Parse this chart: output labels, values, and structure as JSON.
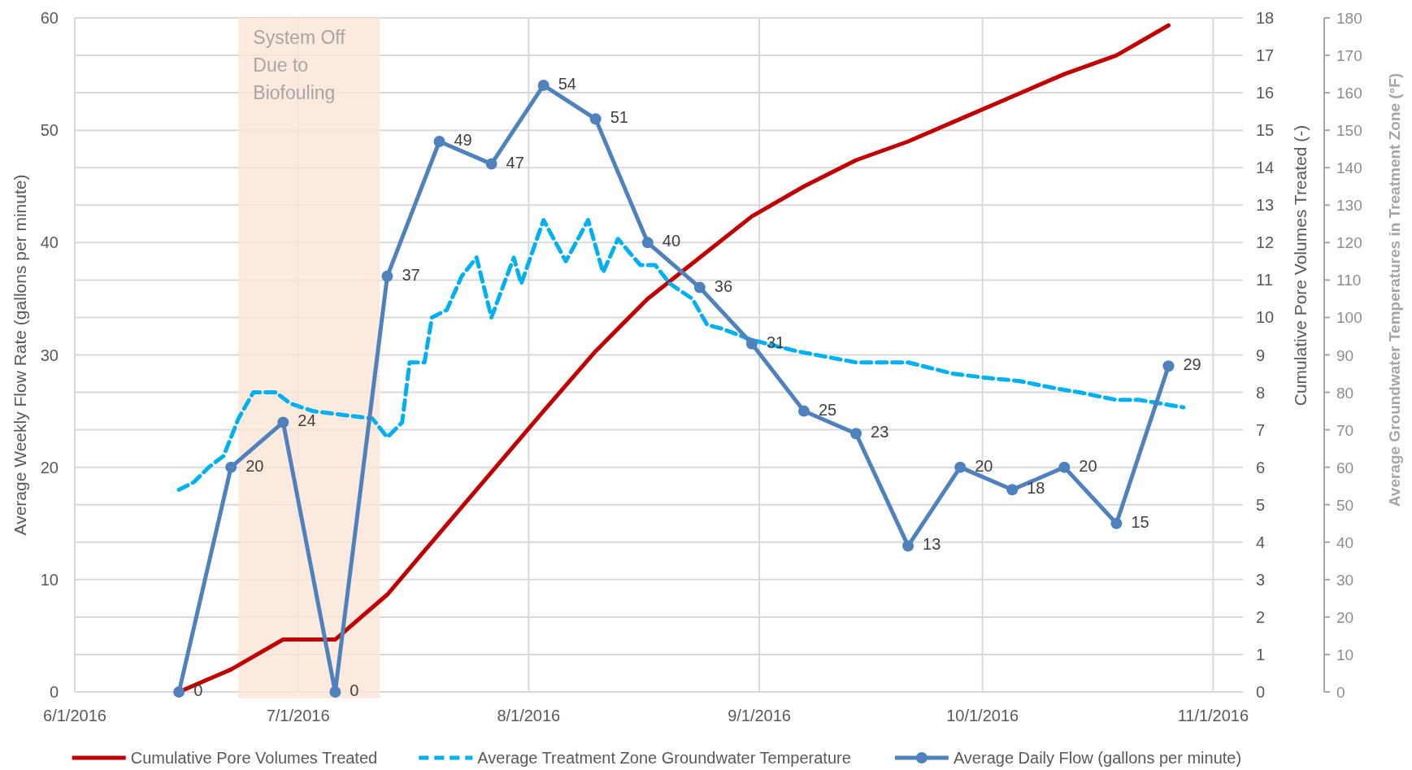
{
  "chart_data": {
    "type": "line",
    "xlim": [
      "2016-06-01",
      "2016-11-05"
    ],
    "xticks": [
      {
        "value": "2016-06-01",
        "label": "6/1/2016"
      },
      {
        "value": "2016-07-01",
        "label": "7/1/2016"
      },
      {
        "value": "2016-08-01",
        "label": "8/1/2016"
      },
      {
        "value": "2016-09-01",
        "label": "9/1/2016"
      },
      {
        "value": "2016-10-01",
        "label": "10/1/2016"
      },
      {
        "value": "2016-11-01",
        "label": "11/1/2016"
      }
    ],
    "ylabel": "Average Weekly Flow Rate (gallons per minute)",
    "ylim": [
      0,
      60
    ],
    "yticks": [
      0,
      10,
      20,
      30,
      40,
      50,
      60
    ],
    "y2label": "Cumulative Pore Volumes Treated (-)",
    "y2lim": [
      0,
      18
    ],
    "y2ticks": [
      0,
      1,
      2,
      3,
      4,
      5,
      6,
      7,
      8,
      9,
      10,
      11,
      12,
      13,
      14,
      15,
      16,
      17,
      18
    ],
    "y3label": "Average Groundwater Temperatures in Treatment Zone (°F)",
    "y3lim": [
      0,
      180
    ],
    "y3ticks": [
      0,
      10,
      20,
      30,
      40,
      50,
      60,
      70,
      80,
      90,
      100,
      110,
      120,
      130,
      140,
      150,
      160,
      170,
      180
    ],
    "grid": true,
    "legend": "bottom",
    "bands": [
      {
        "axis": "x",
        "from": "2016-06-23",
        "to": "2016-07-12",
        "label": "System Off Due to Biofouling",
        "color": "#fbe5d6"
      }
    ],
    "series": [
      {
        "name": "Cumulative Pore Volumes Treated",
        "color": "#c00000",
        "axis": "y2",
        "marker": "none",
        "line_style": "solid",
        "x": [
          "2016-06-15",
          "2016-06-22",
          "2016-06-29",
          "2016-07-06",
          "2016-07-13",
          "2016-08-03",
          "2016-08-10",
          "2016-08-17",
          "2016-08-24",
          "2016-08-31",
          "2016-09-07",
          "2016-09-14",
          "2016-09-21",
          "2016-09-28",
          "2016-10-05",
          "2016-10-12",
          "2016-10-19",
          "2016-10-26"
        ],
        "values": [
          0,
          0.6,
          1.4,
          1.4,
          2.6,
          7.5,
          9.1,
          10.5,
          11.6,
          12.7,
          13.5,
          14.2,
          14.7,
          15.3,
          15.9,
          16.5,
          17.0,
          17.8
        ]
      },
      {
        "name": "Average Treatment Zone Groundwater Temperature",
        "color": "#00b0f0",
        "axis": "y3",
        "marker": "none",
        "line_style": "dashed",
        "x": [
          "2016-06-15",
          "2016-06-17",
          "2016-06-19",
          "2016-06-21",
          "2016-06-23",
          "2016-06-25",
          "2016-06-28",
          "2016-06-30",
          "2016-07-03",
          "2016-07-07",
          "2016-07-11",
          "2016-07-13",
          "2016-07-15",
          "2016-07-16",
          "2016-07-18",
          "2016-07-19",
          "2016-07-21",
          "2016-07-23",
          "2016-07-25",
          "2016-07-27",
          "2016-07-30",
          "2016-07-31",
          "2016-08-03",
          "2016-08-06",
          "2016-08-09",
          "2016-08-11",
          "2016-08-13",
          "2016-08-16",
          "2016-08-18",
          "2016-08-20",
          "2016-08-23",
          "2016-08-25",
          "2016-08-27",
          "2016-08-31",
          "2016-09-06",
          "2016-09-14",
          "2016-09-21",
          "2016-09-27",
          "2016-10-01",
          "2016-10-06",
          "2016-10-11",
          "2016-10-14",
          "2016-10-19",
          "2016-10-22",
          "2016-10-28"
        ],
        "values": [
          54,
          56,
          60,
          63,
          73,
          80,
          80,
          77,
          75,
          74,
          73,
          68,
          72,
          88,
          88,
          100,
          102,
          111,
          116,
          100,
          116,
          109,
          126,
          115,
          126,
          112,
          121,
          114,
          114,
          109,
          105,
          98,
          97,
          94,
          91,
          88,
          88,
          85,
          84,
          83,
          81,
          80,
          78,
          78,
          76
        ]
      },
      {
        "name": "Average Daily Flow (gallons per minute)",
        "color": "#4f81bd",
        "axis": "y",
        "marker": "circle",
        "line_style": "solid",
        "x": [
          "2016-06-15",
          "2016-06-22",
          "2016-06-29",
          "2016-07-06",
          "2016-07-13",
          "2016-07-20",
          "2016-07-27",
          "2016-08-03",
          "2016-08-10",
          "2016-08-17",
          "2016-08-24",
          "2016-08-31",
          "2016-09-07",
          "2016-09-14",
          "2016-09-21",
          "2016-09-28",
          "2016-10-05",
          "2016-10-12",
          "2016-10-19",
          "2016-10-26"
        ],
        "values": [
          0,
          20,
          24,
          0,
          37,
          49,
          47,
          54,
          51,
          40,
          36,
          31,
          25,
          23,
          13,
          20,
          18,
          20,
          15,
          29
        ],
        "value_labels": [
          "0",
          "20",
          "24",
          "0",
          "37",
          "49",
          "47",
          "54",
          "51",
          "40",
          "36",
          "31",
          "25",
          "23",
          "13",
          "20",
          "18",
          "20",
          "15",
          "29"
        ]
      }
    ]
  }
}
